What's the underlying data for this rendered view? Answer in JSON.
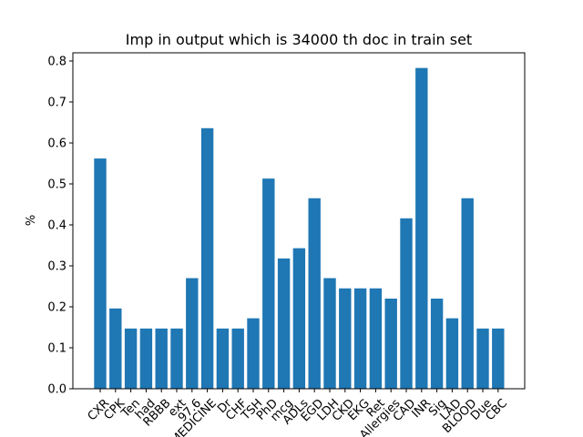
{
  "chart_data": {
    "type": "bar",
    "title": "Imp in output which is 34000 th doc in train set",
    "xlabel": "",
    "ylabel": "%",
    "ylim": [
      0,
      0.82
    ],
    "yticks": [
      "0.0",
      "0.1",
      "0.2",
      "0.3",
      "0.4",
      "0.5",
      "0.6",
      "0.7",
      "0.8"
    ],
    "grid": false,
    "bar_color": "#1f77b4",
    "categories": [
      "CXR",
      "CPK",
      "Ten",
      "had",
      "RBBB",
      "ext",
      "97.6",
      "MEDICINE",
      "Dr",
      "CHF",
      "TSH",
      "PhD",
      "mcg",
      "ADLs",
      "EGD",
      "LDH",
      "CKD",
      "EKG",
      "Ret",
      "Allergies",
      "CAD",
      "INR",
      "Sig",
      "LAD",
      "BLOOD",
      "Due",
      "CBC"
    ],
    "values": [
      0.562,
      0.196,
      0.147,
      0.147,
      0.147,
      0.147,
      0.27,
      0.636,
      0.147,
      0.147,
      0.172,
      0.513,
      0.318,
      0.343,
      0.465,
      0.27,
      0.245,
      0.245,
      0.245,
      0.22,
      0.416,
      0.783,
      0.22,
      0.172,
      0.465,
      0.147,
      0.147
    ]
  }
}
